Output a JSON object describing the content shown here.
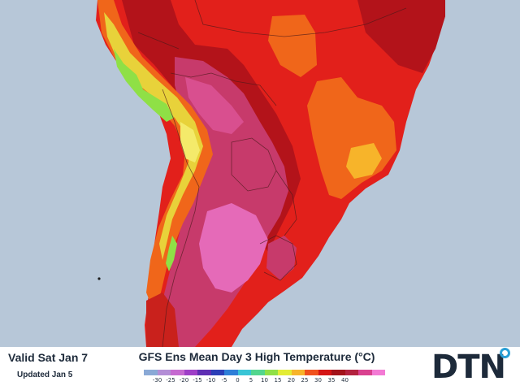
{
  "header": {
    "valid_date": "Valid Sat Jan 7",
    "updated_date": "Updated Jan 5",
    "title": "GFS Ens Mean Day 3 High Temperature (°C)"
  },
  "brand": {
    "name": "DTN",
    "accent_color": "#2a9fd6"
  },
  "legend": {
    "labels": [
      "-30",
      "-25",
      "-20",
      "-15",
      "-10",
      "-5",
      "0",
      "5",
      "10",
      "15",
      "20",
      "25",
      "30",
      "35",
      "40"
    ],
    "colors": [
      "#8aa9d6",
      "#b38ed6",
      "#c569d0",
      "#9e3fc7",
      "#5e2fb3",
      "#2c3fb7",
      "#2e7fd8",
      "#39c5d6",
      "#53d68e",
      "#8fe046",
      "#e3ec35",
      "#f7b42a",
      "#f0511d",
      "#d41515",
      "#a3131a",
      "#b3223f",
      "#d9418f",
      "#f37ad4"
    ]
  },
  "map": {
    "region": "South America",
    "ocean_color": "#b7c7d8"
  }
}
